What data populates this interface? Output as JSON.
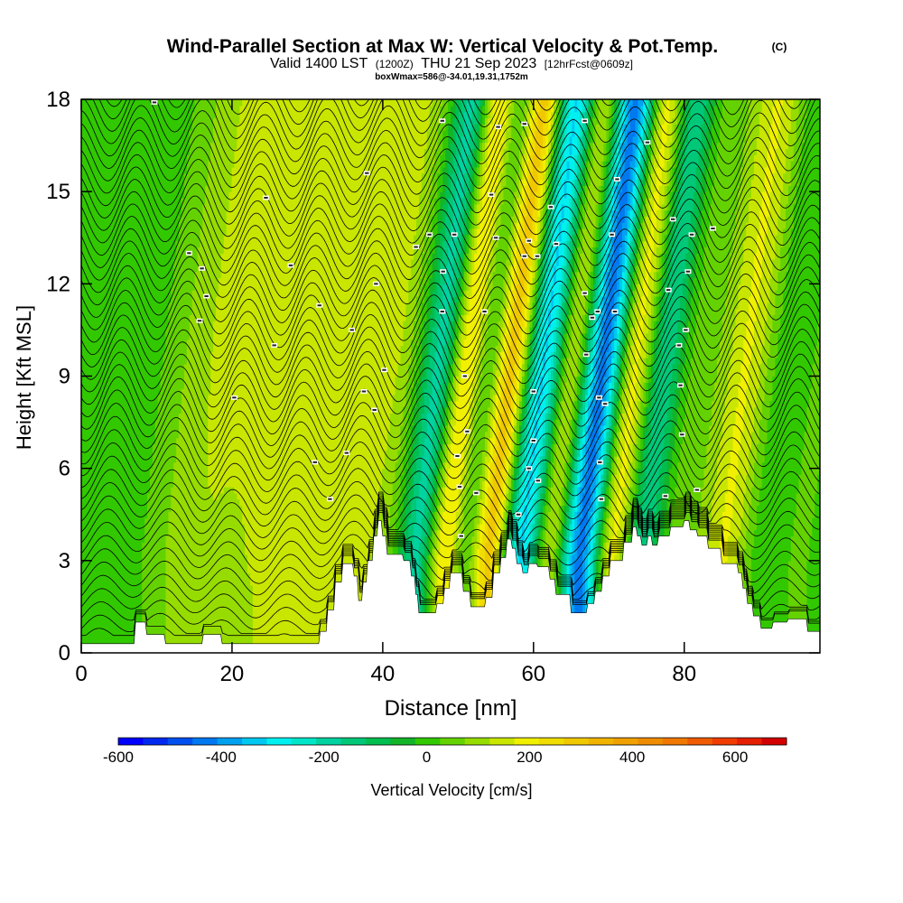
{
  "title": {
    "main": "Wind-Parallel Section at Max W: Vertical Velocity & Pot.Temp.",
    "copyright": "(C)",
    "valid_prefix": "Valid 1400 LST",
    "valid_utc": "(1200Z)",
    "valid_date": "THU 21 Sep 2023",
    "forecast": "[12hrFcst@0609z]",
    "box": "boxWmax=586@-34.01,19.31,1752m"
  },
  "chart_data": {
    "type": "heatmap",
    "xlabel": "Distance [nm]",
    "ylabel": "Height [Kft MSL]",
    "xlim": [
      0,
      98
    ],
    "ylim": [
      0,
      18
    ],
    "x_ticks": [
      0,
      20,
      40,
      60,
      80
    ],
    "y_ticks": [
      0,
      3,
      6,
      9,
      12,
      15,
      18
    ],
    "colorbar": {
      "label": "Vertical Velocity [cm/s]",
      "ticks": [
        -600,
        -400,
        -200,
        0,
        200,
        400,
        600
      ],
      "range": [
        -600,
        700
      ],
      "step": 50,
      "colors": [
        "#0000ff",
        "#0028f0",
        "#0050f0",
        "#0078f0",
        "#00a0f0",
        "#00c8f0",
        "#00f0f0",
        "#00e6c8",
        "#00d2a0",
        "#00c878",
        "#00be50",
        "#14b428",
        "#32c800",
        "#64d200",
        "#96dc00",
        "#c8e600",
        "#f0f000",
        "#f0dc00",
        "#f0c800",
        "#f0b400",
        "#f0a000",
        "#f08c00",
        "#f07800",
        "#f05a00",
        "#f03c00",
        "#e61e00",
        "#d20000"
      ]
    },
    "terrain_kft": [
      [
        0,
        0.3
      ],
      [
        7,
        0.3
      ],
      [
        7.2,
        1
      ],
      [
        8.5,
        1
      ],
      [
        8.7,
        0.6
      ],
      [
        11,
        0.6
      ],
      [
        11.2,
        0.3
      ],
      [
        16,
        0.3
      ],
      [
        16.2,
        0.6
      ],
      [
        18.5,
        0.6
      ],
      [
        18.7,
        0.3
      ],
      [
        31.5,
        0.3
      ],
      [
        31.7,
        0.7
      ],
      [
        32.5,
        0.7
      ],
      [
        32.7,
        1.4
      ],
      [
        33.5,
        1.4
      ],
      [
        33.7,
        2.3
      ],
      [
        34.5,
        2.3
      ],
      [
        34.7,
        2.9
      ],
      [
        36,
        2.9
      ],
      [
        36.2,
        2.5
      ],
      [
        36.6,
        2.5
      ],
      [
        36.8,
        1.7
      ],
      [
        37.2,
        1.7
      ],
      [
        37.4,
        2.3
      ],
      [
        37.8,
        2.3
      ],
      [
        38,
        3
      ],
      [
        38.6,
        3
      ],
      [
        38.8,
        3.8
      ],
      [
        39.2,
        3.8
      ],
      [
        39.4,
        4.3
      ],
      [
        39.8,
        4.3
      ],
      [
        40,
        3.8
      ],
      [
        40.4,
        3.8
      ],
      [
        40.6,
        3.2
      ],
      [
        42.6,
        3.2
      ],
      [
        42.8,
        3
      ],
      [
        43.6,
        3
      ],
      [
        43.8,
        2.5
      ],
      [
        44.2,
        2.5
      ],
      [
        44.4,
        1.9
      ],
      [
        44.6,
        1.9
      ],
      [
        44.8,
        1.3
      ],
      [
        47,
        1.3
      ],
      [
        47.2,
        1.6
      ],
      [
        48,
        1.6
      ],
      [
        48.2,
        2.1
      ],
      [
        48.8,
        2.1
      ],
      [
        49,
        2.6
      ],
      [
        50.5,
        2.6
      ],
      [
        50.7,
        2
      ],
      [
        51.5,
        2
      ],
      [
        51.7,
        1.5
      ],
      [
        53.5,
        1.5
      ],
      [
        53.7,
        1.8
      ],
      [
        54.5,
        1.8
      ],
      [
        54.7,
        2.6
      ],
      [
        55.5,
        2.6
      ],
      [
        55.7,
        3.1
      ],
      [
        56.3,
        3.1
      ],
      [
        56.5,
        3.7
      ],
      [
        57,
        3.7
      ],
      [
        57.2,
        3.4
      ],
      [
        57.6,
        3.4
      ],
      [
        57.8,
        2.9
      ],
      [
        58.4,
        2.9
      ],
      [
        58.6,
        2.6
      ],
      [
        59.2,
        2.6
      ],
      [
        59.4,
        2.9
      ],
      [
        60.4,
        2.9
      ],
      [
        60.6,
        2.8
      ],
      [
        62,
        2.8
      ],
      [
        62.2,
        2.4
      ],
      [
        62.8,
        2.4
      ],
      [
        63,
        1.9
      ],
      [
        64.8,
        1.9
      ],
      [
        65,
        1.3
      ],
      [
        67,
        1.3
      ],
      [
        67.2,
        1.6
      ],
      [
        68,
        1.6
      ],
      [
        68.2,
        2
      ],
      [
        69,
        2
      ],
      [
        69.2,
        2.5
      ],
      [
        70,
        2.5
      ],
      [
        70.2,
        3
      ],
      [
        71.8,
        3
      ],
      [
        72,
        3.6
      ],
      [
        73,
        3.6
      ],
      [
        73.2,
        4.1
      ],
      [
        73.6,
        4.1
      ],
      [
        73.8,
        3.8
      ],
      [
        74.2,
        3.8
      ],
      [
        74.4,
        3.5
      ],
      [
        75,
        3.5
      ],
      [
        75.2,
        3.8
      ],
      [
        75.6,
        3.8
      ],
      [
        75.8,
        3.5
      ],
      [
        76.4,
        3.5
      ],
      [
        76.6,
        3.8
      ],
      [
        78,
        3.8
      ],
      [
        78.2,
        4.1
      ],
      [
        79.8,
        4.1
      ],
      [
        80,
        4.3
      ],
      [
        80.6,
        4.3
      ],
      [
        80.8,
        4
      ],
      [
        81.6,
        4
      ],
      [
        81.8,
        3.8
      ],
      [
        83,
        3.8
      ],
      [
        83.2,
        3.4
      ],
      [
        84.8,
        3.4
      ],
      [
        85,
        2.9
      ],
      [
        87,
        2.9
      ],
      [
        87.2,
        2.6
      ],
      [
        87.6,
        2.6
      ],
      [
        87.8,
        2.1
      ],
      [
        88.2,
        2.1
      ],
      [
        88.4,
        1.6
      ],
      [
        89,
        1.6
      ],
      [
        89.2,
        1.2
      ],
      [
        90,
        1.2
      ],
      [
        90.2,
        0.8
      ],
      [
        91.6,
        0.8
      ],
      [
        91.8,
        1
      ],
      [
        93.6,
        1
      ],
      [
        93.8,
        1.1
      ],
      [
        96.2,
        1.1
      ],
      [
        96.4,
        0.7
      ],
      [
        98,
        0.7
      ]
    ],
    "theta_contour_labels_kft": [
      [
        9.7,
        17.9
      ],
      [
        14.3,
        13.0
      ],
      [
        15.7,
        10.8
      ],
      [
        16,
        12.5
      ],
      [
        16.6,
        11.6
      ],
      [
        20.3,
        8.3
      ],
      [
        24.5,
        14.8
      ],
      [
        25.6,
        10.0
      ],
      [
        27.8,
        12.6
      ],
      [
        31.0,
        6.2
      ],
      [
        31.6,
        11.3
      ],
      [
        33.0,
        5.0
      ],
      [
        35.2,
        6.5
      ],
      [
        35.9,
        10.5
      ],
      [
        37.5,
        8.5
      ],
      [
        37.9,
        15.6
      ],
      [
        39.1,
        12.0
      ],
      [
        38.9,
        7.9
      ],
      [
        40.2,
        9.2
      ],
      [
        44.4,
        13.2
      ],
      [
        46.2,
        13.6
      ],
      [
        47.9,
        17.3
      ],
      [
        47.9,
        11.1
      ],
      [
        48.0,
        12.4
      ],
      [
        49.5,
        13.6
      ],
      [
        49.9,
        6.4
      ],
      [
        50.2,
        5.4
      ],
      [
        50.4,
        3.8
      ],
      [
        50.9,
        9.0
      ],
      [
        51.2,
        7.2
      ],
      [
        52.4,
        5.2
      ],
      [
        53.5,
        11.1
      ],
      [
        54.4,
        14.9
      ],
      [
        55.0,
        13.5
      ],
      [
        55.3,
        17.1
      ],
      [
        58.0,
        4.5
      ],
      [
        58.8,
        17.2
      ],
      [
        58.8,
        12.9
      ],
      [
        59.4,
        13.4
      ],
      [
        59.4,
        6.0
      ],
      [
        60.0,
        8.5
      ],
      [
        60.0,
        6.9
      ],
      [
        60.6,
        5.6
      ],
      [
        60.5,
        12.9
      ],
      [
        62.3,
        14.5
      ],
      [
        63.0,
        13.3
      ],
      [
        66.8,
        17.3
      ],
      [
        66.8,
        11.7
      ],
      [
        67.0,
        9.7
      ],
      [
        67.8,
        10.9
      ],
      [
        68.5,
        11.1
      ],
      [
        68.7,
        8.3
      ],
      [
        68.8,
        6.2
      ],
      [
        69.0,
        5.0
      ],
      [
        69.5,
        8.1
      ],
      [
        70.4,
        13.6
      ],
      [
        70.8,
        11.1
      ],
      [
        71.1,
        15.4
      ],
      [
        75.1,
        16.6
      ],
      [
        77.5,
        5.1
      ],
      [
        77.9,
        11.8
      ],
      [
        78.5,
        14.1
      ],
      [
        79.3,
        10.0
      ],
      [
        79.5,
        8.7
      ],
      [
        79.7,
        7.1
      ],
      [
        80.2,
        10.5
      ],
      [
        80.5,
        12.4
      ],
      [
        81.0,
        13.6
      ],
      [
        81.7,
        5.3
      ],
      [
        83.8,
        13.8
      ]
    ]
  }
}
